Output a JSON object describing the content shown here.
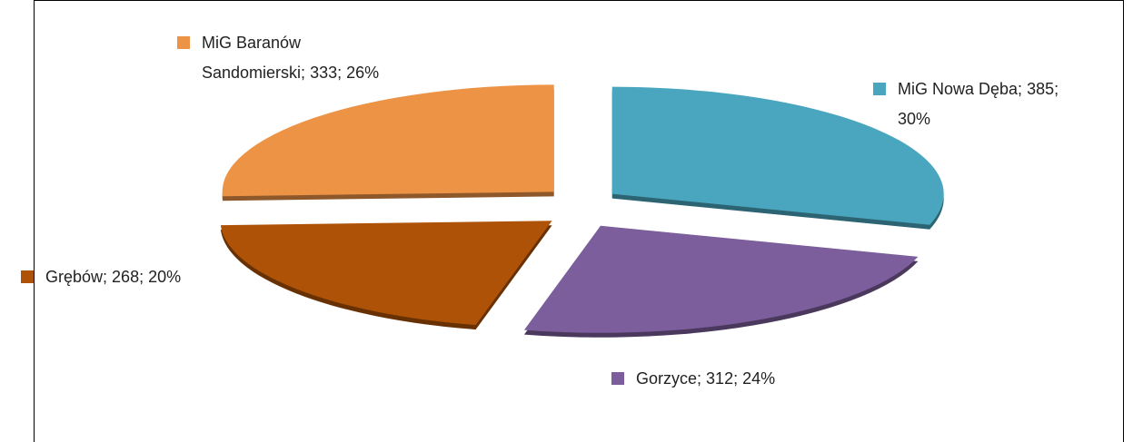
{
  "chart_data": {
    "type": "pie",
    "categories": [
      "MiG Nowa Dęba",
      "Gorzyce",
      "Grębów",
      "MiG Baranów Sandomierski"
    ],
    "values": [
      385,
      312,
      268,
      333
    ],
    "value_labels": [
      "385; 30%",
      "312; 24%",
      "268; 20%",
      "333; 26%"
    ],
    "label_separator": "; ",
    "colors": [
      "#4aa6bf",
      "#7b5e9b",
      "#ae5207",
      "#ec9346"
    ]
  }
}
